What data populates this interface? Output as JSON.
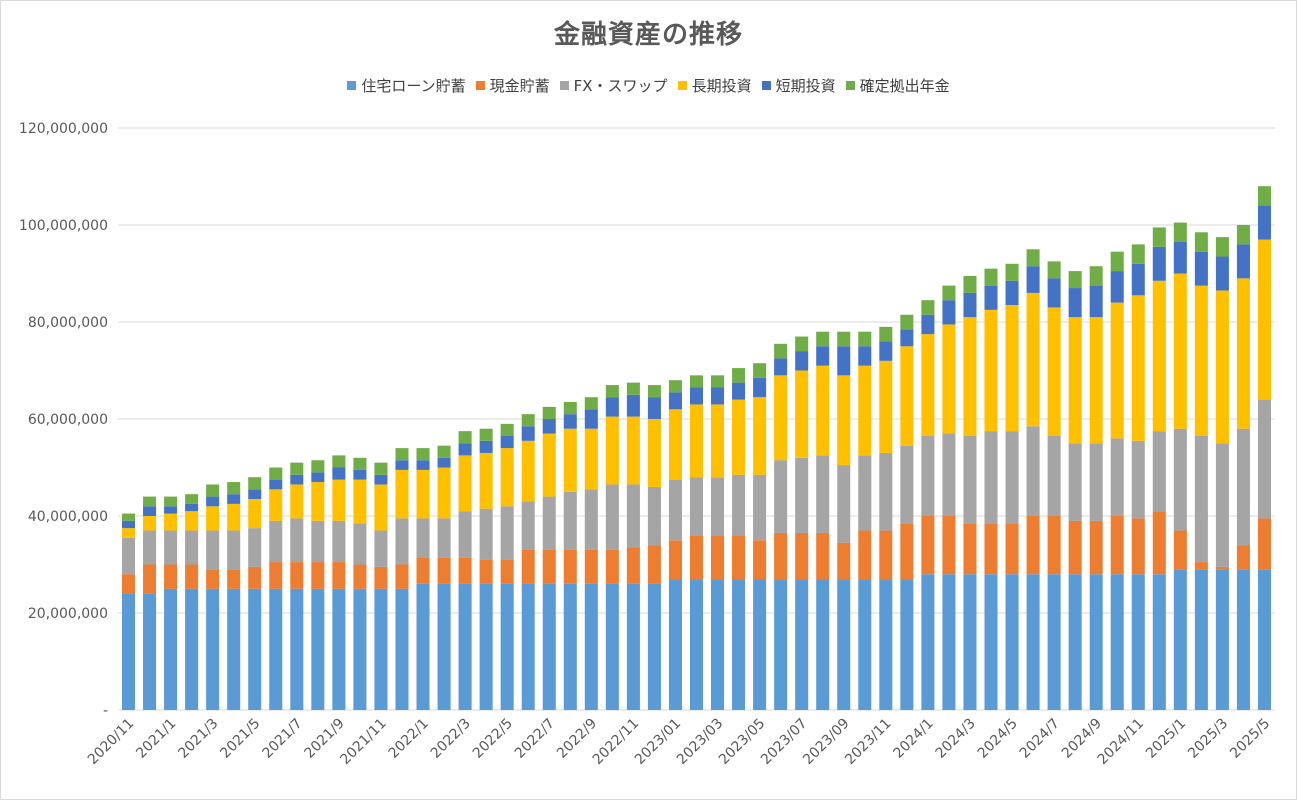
{
  "chart_data": {
    "type": "bar",
    "stacked": true,
    "title": "金融資産の推移",
    "xlabel": "",
    "ylabel": "",
    "ylim": [
      0,
      120000000
    ],
    "yticks": [
      0,
      20000000,
      40000000,
      60000000,
      80000000,
      100000000,
      120000000
    ],
    "ytick_labels": [
      "-",
      "20,000,000",
      "40,000,000",
      "60,000,000",
      "80,000,000",
      "100,000,000",
      "120,000,000"
    ],
    "grid": true,
    "legend_position": "top",
    "xtick_labels": [
      "2020/11",
      "2021/1",
      "2021/3",
      "2021/5",
      "2021/7",
      "2021/9",
      "2021/11",
      "2022/1",
      "2022/3",
      "2022/5",
      "2022/7",
      "2022/9",
      "2022/11",
      "2023/01",
      "2023/03",
      "2023/05",
      "2023/07",
      "2023/09",
      "2023/11",
      "2024/1",
      "2024/3",
      "2024/5",
      "2024/7",
      "2024/9",
      "2024/11",
      "2025/1",
      "2025/3",
      "2025/5"
    ],
    "categories": [
      "2020/11",
      "2020/12",
      "2021/1",
      "2021/2",
      "2021/3",
      "2021/4",
      "2021/5",
      "2021/6",
      "2021/7",
      "2021/8",
      "2021/9",
      "2021/10",
      "2021/11",
      "2021/12",
      "2022/1",
      "2022/2",
      "2022/3",
      "2022/4",
      "2022/5",
      "2022/6",
      "2022/7",
      "2022/8",
      "2022/9",
      "2022/10",
      "2022/11",
      "2022/12",
      "2023/01",
      "2023/02",
      "2023/03",
      "2023/04",
      "2023/05",
      "2023/06",
      "2023/07",
      "2023/08",
      "2023/09",
      "2023/10",
      "2023/11",
      "2023/12",
      "2024/1",
      "2024/2",
      "2024/3",
      "2024/4",
      "2024/5",
      "2024/6",
      "2024/7",
      "2024/8",
      "2024/9",
      "2024/10",
      "2024/11",
      "2024/12",
      "2025/1",
      "2025/2",
      "2025/3",
      "2025/4",
      "2025/5"
    ],
    "series": [
      {
        "name": "住宅ローン貯蓄",
        "color": "#5b9bd5",
        "values": [
          24000000,
          24000000,
          25000000,
          25000000,
          25000000,
          25000000,
          25000000,
          25000000,
          25000000,
          25000000,
          25000000,
          25000000,
          25000000,
          25000000,
          26000000,
          26000000,
          26000000,
          26000000,
          26000000,
          26000000,
          26000000,
          26000000,
          26000000,
          26000000,
          26000000,
          26000000,
          27000000,
          27000000,
          27000000,
          27000000,
          27000000,
          27000000,
          27000000,
          27000000,
          27000000,
          27000000,
          27000000,
          27000000,
          28000000,
          28000000,
          28000000,
          28000000,
          28000000,
          28000000,
          28000000,
          28000000,
          28000000,
          28000000,
          28000000,
          28000000,
          29000000,
          29000000,
          29000000,
          29000000,
          29000000
        ]
      },
      {
        "name": "現金貯蓄",
        "color": "#ed7d31",
        "values": [
          4000000,
          6000000,
          5000000,
          5000000,
          4000000,
          4000000,
          4500000,
          5500000,
          5500000,
          5500000,
          5500000,
          5000000,
          4500000,
          5000000,
          5500000,
          5500000,
          5500000,
          5000000,
          5000000,
          7000000,
          7000000,
          7000000,
          7000000,
          7000000,
          7500000,
          8000000,
          8000000,
          9000000,
          9000000,
          9000000,
          8000000,
          9500000,
          9500000,
          9500000,
          7500000,
          10000000,
          10000000,
          11500000,
          12000000,
          12000000,
          10500000,
          10500000,
          10500000,
          12000000,
          12000000,
          11000000,
          11000000,
          12000000,
          11500000,
          13000000,
          8000000,
          1500000,
          500000,
          5000000,
          10500000
        ]
      },
      {
        "name": "FX・スワップ",
        "color": "#a5a5a5",
        "values": [
          7500000,
          7000000,
          7000000,
          7000000,
          8000000,
          8000000,
          8000000,
          8500000,
          9000000,
          8500000,
          8500000,
          8500000,
          7500000,
          9500000,
          8000000,
          8000000,
          9500000,
          10500000,
          11000000,
          10000000,
          11000000,
          12000000,
          12500000,
          13500000,
          13000000,
          12000000,
          12500000,
          12000000,
          12000000,
          12500000,
          13500000,
          15000000,
          15500000,
          16000000,
          16000000,
          15500000,
          16000000,
          16000000,
          16500000,
          17000000,
          18000000,
          19000000,
          19000000,
          18500000,
          16500000,
          16000000,
          16000000,
          16000000,
          16000000,
          16500000,
          21000000,
          26000000,
          25500000,
          24000000,
          24500000
        ]
      },
      {
        "name": "長期投資",
        "color": "#ffc000",
        "values": [
          2000000,
          3000000,
          3500000,
          4000000,
          5000000,
          5500000,
          6000000,
          6500000,
          7000000,
          8000000,
          8500000,
          9000000,
          9500000,
          10000000,
          10000000,
          10500000,
          11500000,
          11500000,
          12000000,
          12500000,
          13000000,
          13000000,
          12500000,
          14000000,
          14000000,
          14000000,
          14500000,
          15000000,
          15000000,
          15500000,
          16000000,
          17500000,
          18000000,
          18500000,
          18500000,
          18500000,
          19000000,
          20500000,
          21000000,
          22500000,
          24500000,
          25000000,
          26000000,
          27500000,
          26500000,
          26000000,
          26000000,
          28000000,
          30000000,
          31000000,
          32000000,
          31000000,
          31500000,
          31000000,
          33000000
        ]
      },
      {
        "name": "短期投資",
        "color": "#4472c4",
        "values": [
          1500000,
          2000000,
          1500000,
          1500000,
          2000000,
          2000000,
          2000000,
          2000000,
          2000000,
          2000000,
          2500000,
          2000000,
          2000000,
          2000000,
          2000000,
          2000000,
          2500000,
          2500000,
          2500000,
          3000000,
          3000000,
          3000000,
          4000000,
          4000000,
          4500000,
          4500000,
          3500000,
          3500000,
          3500000,
          3500000,
          4000000,
          3500000,
          4000000,
          4000000,
          6000000,
          4000000,
          4000000,
          3500000,
          4000000,
          5000000,
          5000000,
          5000000,
          5000000,
          5500000,
          6000000,
          6000000,
          6500000,
          6500000,
          6500000,
          7000000,
          6500000,
          7000000,
          7000000,
          7000000,
          7000000
        ]
      },
      {
        "name": "確定拠出年金",
        "color": "#70ad47",
        "values": [
          1500000,
          2000000,
          2000000,
          2000000,
          2500000,
          2500000,
          2500000,
          2500000,
          2500000,
          2500000,
          2500000,
          2500000,
          2500000,
          2500000,
          2500000,
          2500000,
          2500000,
          2500000,
          2500000,
          2500000,
          2500000,
          2500000,
          2500000,
          2500000,
          2500000,
          2500000,
          2500000,
          2500000,
          2500000,
          3000000,
          3000000,
          3000000,
          3000000,
          3000000,
          3000000,
          3000000,
          3000000,
          3000000,
          3000000,
          3000000,
          3500000,
          3500000,
          3500000,
          3500000,
          3500000,
          3500000,
          4000000,
          4000000,
          4000000,
          4000000,
          4000000,
          4000000,
          4000000,
          4000000,
          4000000
        ]
      }
    ]
  }
}
